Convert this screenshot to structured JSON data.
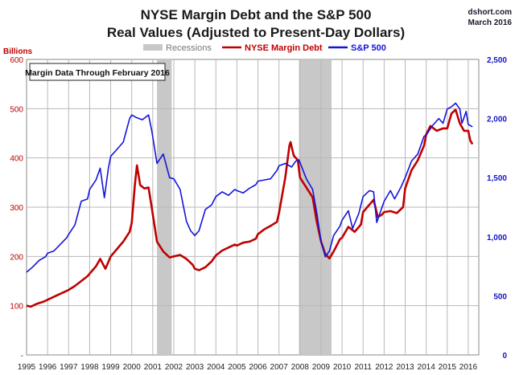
{
  "chart_data": {
    "type": "line",
    "title": "NYSE Margin Debt and the S&P 500",
    "subtitle": "Real Values (Adjusted to Present-Day Dollars)",
    "source": "dshort.com",
    "source_date": "March 2016",
    "note": "Margin Data Through February 2016",
    "left_axis_label": "Billions",
    "left_ylim": [
      0,
      600
    ],
    "left_ticks": [
      {
        "v": 0,
        "label": "-"
      },
      {
        "v": 100,
        "label": "100"
      },
      {
        "v": 200,
        "label": "200"
      },
      {
        "v": 300,
        "label": "300"
      },
      {
        "v": 400,
        "label": "400"
      },
      {
        "v": 500,
        "label": "500"
      },
      {
        "v": 600,
        "label": "600"
      }
    ],
    "right_ylim": [
      0,
      2500
    ],
    "right_ticks": [
      {
        "v": 0,
        "label": "0"
      },
      {
        "v": 500,
        "label": "500"
      },
      {
        "v": 1000,
        "label": "1,000"
      },
      {
        "v": 1500,
        "label": "1,500"
      },
      {
        "v": 2000,
        "label": "2,000"
      },
      {
        "v": 2500,
        "label": "2,500"
      }
    ],
    "xlim": [
      1995.0,
      2016.5
    ],
    "x_ticks": [
      "1995",
      "1996",
      "1997",
      "1998",
      "1999",
      "2000",
      "2001",
      "2002",
      "2003",
      "2004",
      "2005",
      "2006",
      "2007",
      "2008",
      "2009",
      "2010",
      "2011",
      "2012",
      "2013",
      "2014",
      "2015",
      "2016"
    ],
    "grid": true,
    "legend_position": "top",
    "legend": [
      {
        "label": "Recessions",
        "color": "#c8c8c8",
        "kind": "band"
      },
      {
        "label": "NYSE Margin Debt",
        "color": "#c00000",
        "kind": "line"
      },
      {
        "label": "S&P 500",
        "color": "#1414dc",
        "kind": "line"
      }
    ],
    "recessions": [
      [
        2001.2,
        2001.9
      ],
      [
        2007.95,
        2009.5
      ]
    ],
    "series": [
      {
        "name": "NYSE Margin Debt",
        "axis": "left",
        "color": "#c00000",
        "points": [
          [
            1995.0,
            100
          ],
          [
            1995.2,
            98
          ],
          [
            1995.5,
            104
          ],
          [
            1995.8,
            108
          ],
          [
            1996.0,
            112
          ],
          [
            1996.3,
            118
          ],
          [
            1996.6,
            124
          ],
          [
            1996.9,
            130
          ],
          [
            1997.0,
            132
          ],
          [
            1997.3,
            140
          ],
          [
            1997.6,
            150
          ],
          [
            1997.9,
            160
          ],
          [
            1998.0,
            165
          ],
          [
            1998.3,
            180
          ],
          [
            1998.5,
            195
          ],
          [
            1998.75,
            175
          ],
          [
            1999.0,
            200
          ],
          [
            1999.3,
            215
          ],
          [
            1999.6,
            230
          ],
          [
            1999.9,
            250
          ],
          [
            2000.0,
            268
          ],
          [
            2000.15,
            345
          ],
          [
            2000.25,
            385
          ],
          [
            2000.4,
            345
          ],
          [
            2000.6,
            338
          ],
          [
            2000.8,
            340
          ],
          [
            2000.95,
            300
          ],
          [
            2001.2,
            230
          ],
          [
            2001.5,
            210
          ],
          [
            2001.8,
            198
          ],
          [
            2002.0,
            200
          ],
          [
            2002.3,
            203
          ],
          [
            2002.6,
            195
          ],
          [
            2002.9,
            183
          ],
          [
            2003.0,
            175
          ],
          [
            2003.2,
            172
          ],
          [
            2003.5,
            178
          ],
          [
            2003.8,
            190
          ],
          [
            2004.0,
            202
          ],
          [
            2004.3,
            212
          ],
          [
            2004.6,
            218
          ],
          [
            2004.9,
            224
          ],
          [
            2005.0,
            222
          ],
          [
            2005.3,
            228
          ],
          [
            2005.6,
            230
          ],
          [
            2005.9,
            236
          ],
          [
            2006.0,
            245
          ],
          [
            2006.3,
            255
          ],
          [
            2006.6,
            262
          ],
          [
            2006.9,
            270
          ],
          [
            2007.0,
            288
          ],
          [
            2007.3,
            360
          ],
          [
            2007.5,
            425
          ],
          [
            2007.55,
            432
          ],
          [
            2007.7,
            405
          ],
          [
            2007.9,
            395
          ],
          [
            2008.0,
            360
          ],
          [
            2008.3,
            340
          ],
          [
            2008.6,
            320
          ],
          [
            2008.8,
            270
          ],
          [
            2009.0,
            230
          ],
          [
            2009.2,
            205
          ],
          [
            2009.4,
            196
          ],
          [
            2009.6,
            210
          ],
          [
            2009.9,
            235
          ],
          [
            2010.0,
            238
          ],
          [
            2010.3,
            260
          ],
          [
            2010.6,
            250
          ],
          [
            2010.9,
            265
          ],
          [
            2011.0,
            290
          ],
          [
            2011.3,
            305
          ],
          [
            2011.5,
            315
          ],
          [
            2011.7,
            280
          ],
          [
            2011.9,
            285
          ],
          [
            2012.0,
            290
          ],
          [
            2012.3,
            292
          ],
          [
            2012.6,
            288
          ],
          [
            2012.9,
            300
          ],
          [
            2013.0,
            338
          ],
          [
            2013.3,
            375
          ],
          [
            2013.6,
            395
          ],
          [
            2013.9,
            425
          ],
          [
            2014.0,
            448
          ],
          [
            2014.2,
            465
          ],
          [
            2014.5,
            455
          ],
          [
            2014.8,
            460
          ],
          [
            2015.0,
            460
          ],
          [
            2015.2,
            490
          ],
          [
            2015.4,
            498
          ],
          [
            2015.6,
            470
          ],
          [
            2015.8,
            455
          ],
          [
            2016.0,
            455
          ],
          [
            2016.1,
            435
          ],
          [
            2016.2,
            428
          ]
        ]
      },
      {
        "name": "S&P 500",
        "axis": "right",
        "color": "#1414dc",
        "points": [
          [
            1995.0,
            700
          ],
          [
            1995.3,
            745
          ],
          [
            1995.6,
            800
          ],
          [
            1995.9,
            830
          ],
          [
            1996.0,
            860
          ],
          [
            1996.3,
            880
          ],
          [
            1996.6,
            935
          ],
          [
            1996.9,
            990
          ],
          [
            1997.0,
            1020
          ],
          [
            1997.3,
            1100
          ],
          [
            1997.6,
            1300
          ],
          [
            1997.9,
            1320
          ],
          [
            1998.0,
            1400
          ],
          [
            1998.3,
            1480
          ],
          [
            1998.5,
            1580
          ],
          [
            1998.7,
            1330
          ],
          [
            1998.9,
            1590
          ],
          [
            1999.0,
            1680
          ],
          [
            1999.3,
            1740
          ],
          [
            1999.6,
            1800
          ],
          [
            1999.9,
            2000
          ],
          [
            2000.0,
            2030
          ],
          [
            2000.2,
            2010
          ],
          [
            2000.5,
            1990
          ],
          [
            2000.8,
            2030
          ],
          [
            2000.95,
            1900
          ],
          [
            2001.2,
            1620
          ],
          [
            2001.5,
            1700
          ],
          [
            2001.8,
            1500
          ],
          [
            2002.0,
            1490
          ],
          [
            2002.3,
            1400
          ],
          [
            2002.6,
            1130
          ],
          [
            2002.8,
            1050
          ],
          [
            2003.0,
            1010
          ],
          [
            2003.2,
            1050
          ],
          [
            2003.5,
            1230
          ],
          [
            2003.8,
            1270
          ],
          [
            2004.0,
            1340
          ],
          [
            2004.3,
            1380
          ],
          [
            2004.6,
            1350
          ],
          [
            2004.9,
            1400
          ],
          [
            2005.0,
            1390
          ],
          [
            2005.3,
            1370
          ],
          [
            2005.6,
            1410
          ],
          [
            2005.9,
            1440
          ],
          [
            2006.0,
            1470
          ],
          [
            2006.3,
            1480
          ],
          [
            2006.6,
            1490
          ],
          [
            2006.9,
            1560
          ],
          [
            2007.0,
            1600
          ],
          [
            2007.3,
            1620
          ],
          [
            2007.6,
            1590
          ],
          [
            2007.8,
            1640
          ],
          [
            2007.95,
            1650
          ],
          [
            2008.3,
            1490
          ],
          [
            2008.6,
            1400
          ],
          [
            2008.8,
            1200
          ],
          [
            2009.0,
            960
          ],
          [
            2009.2,
            830
          ],
          [
            2009.4,
            880
          ],
          [
            2009.6,
            1010
          ],
          [
            2009.9,
            1090
          ],
          [
            2010.0,
            1140
          ],
          [
            2010.3,
            1220
          ],
          [
            2010.5,
            1070
          ],
          [
            2010.8,
            1200
          ],
          [
            2011.0,
            1340
          ],
          [
            2011.3,
            1390
          ],
          [
            2011.5,
            1380
          ],
          [
            2011.65,
            1120
          ],
          [
            2011.9,
            1250
          ],
          [
            2012.0,
            1300
          ],
          [
            2012.3,
            1390
          ],
          [
            2012.5,
            1320
          ],
          [
            2012.8,
            1420
          ],
          [
            2013.0,
            1500
          ],
          [
            2013.3,
            1640
          ],
          [
            2013.6,
            1700
          ],
          [
            2013.9,
            1850
          ],
          [
            2014.0,
            1860
          ],
          [
            2014.3,
            1940
          ],
          [
            2014.6,
            2000
          ],
          [
            2014.8,
            1960
          ],
          [
            2015.0,
            2080
          ],
          [
            2015.2,
            2100
          ],
          [
            2015.4,
            2130
          ],
          [
            2015.6,
            2080
          ],
          [
            2015.7,
            1960
          ],
          [
            2015.9,
            2060
          ],
          [
            2016.0,
            1950
          ],
          [
            2016.1,
            1940
          ],
          [
            2016.2,
            1930
          ]
        ]
      }
    ]
  }
}
